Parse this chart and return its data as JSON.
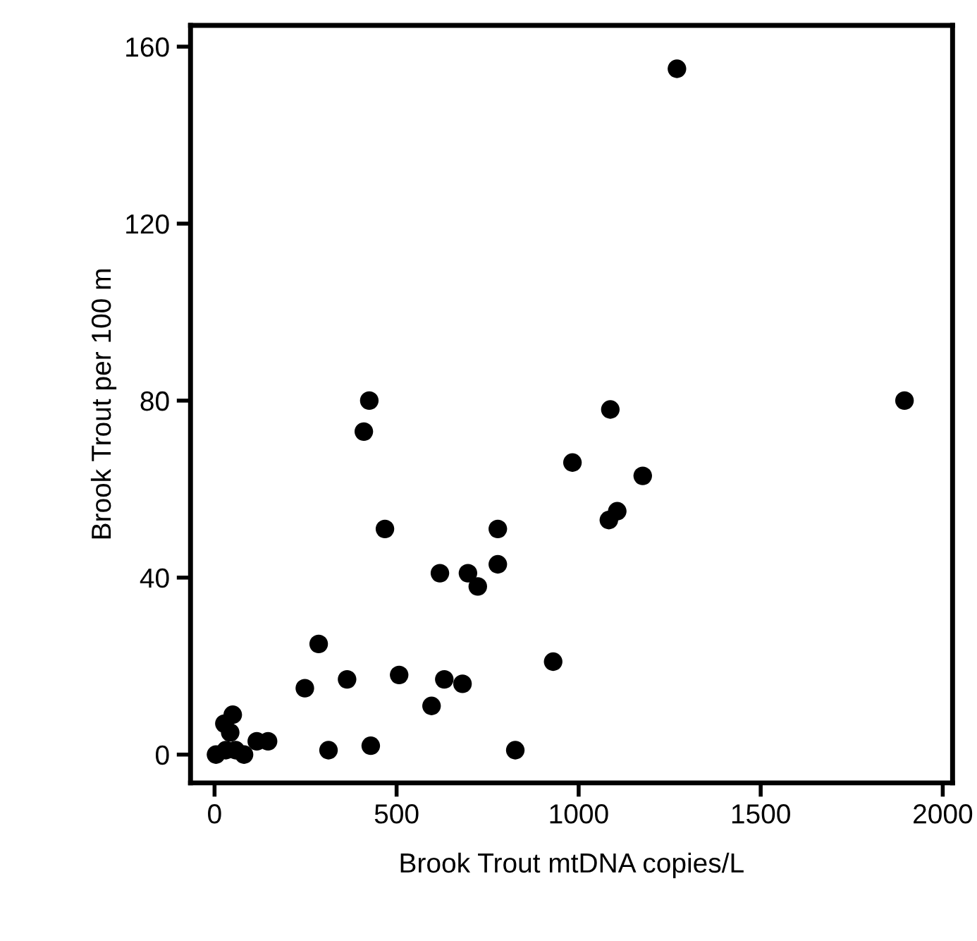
{
  "chart_data": {
    "type": "scatter",
    "xlabel": "Brook Trout mtDNA copies/L",
    "ylabel": "Brook Trout per 100 m",
    "series": [
      {
        "color": "#000000",
        "x": [
          1270,
          1895,
          425,
          410,
          1087,
          983,
          1176,
          1106,
          1083,
          468,
          778,
          778,
          619,
          696,
          723,
          286,
          930,
          248,
          364,
          507,
          631,
          681,
          596,
          313,
          429,
          826,
          4,
          31,
          58,
          50,
          27,
          43,
          81,
          116,
          147
        ],
        "values": [
          155,
          80,
          80,
          73,
          78,
          66,
          63,
          55,
          53,
          51,
          51,
          43,
          41,
          41,
          38,
          25,
          21,
          15,
          17,
          18,
          17,
          16,
          11,
          1,
          2,
          1,
          0,
          1,
          1,
          9,
          7,
          5,
          0,
          3,
          3
        ]
      }
    ],
    "xlim": [
      -66,
      2027
    ],
    "ylim": [
      -6.4,
      164.8
    ],
    "xticks": [
      0,
      500,
      1000,
      1500,
      2000
    ],
    "yticks": [
      0,
      40,
      80,
      120,
      160
    ],
    "marker": "circle",
    "grid": false,
    "legend": false
  }
}
